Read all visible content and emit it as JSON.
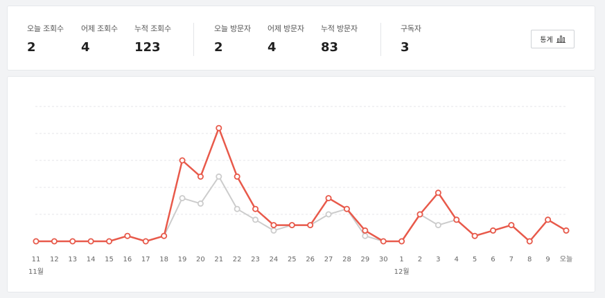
{
  "stats": {
    "groups": [
      [
        {
          "label": "오늘 조회수",
          "value": "2"
        },
        {
          "label": "어제 조회수",
          "value": "4"
        },
        {
          "label": "누적 조회수",
          "value": "123"
        }
      ],
      [
        {
          "label": "오늘 방문자",
          "value": "2"
        },
        {
          "label": "어제 방문자",
          "value": "4"
        },
        {
          "label": "누적 방문자",
          "value": "83"
        }
      ],
      [
        {
          "label": "구독자",
          "value": "3"
        }
      ]
    ],
    "button_label": "통계",
    "button_icon": "bar-chart-icon"
  },
  "chart_data": {
    "type": "line",
    "x": [
      "11",
      "12",
      "13",
      "14",
      "15",
      "16",
      "17",
      "18",
      "19",
      "20",
      "21",
      "22",
      "23",
      "24",
      "25",
      "26",
      "27",
      "28",
      "29",
      "30",
      "1",
      "2",
      "3",
      "4",
      "5",
      "6",
      "7",
      "8",
      "9",
      "오늘"
    ],
    "month_labels": [
      {
        "label": "11월",
        "at_index": 0
      },
      {
        "label": "12월",
        "at_index": 20
      }
    ],
    "ylim": [
      0,
      25
    ],
    "grid": true,
    "series": [
      {
        "color": "#e8594a",
        "values": [
          0,
          0,
          0,
          0,
          0,
          1,
          0,
          1,
          15,
          12,
          21,
          12,
          6,
          3,
          3,
          3,
          8,
          6,
          2,
          0,
          0,
          5,
          9,
          4,
          1,
          2,
          3,
          0,
          4,
          2
        ]
      },
      {
        "color": "#cccccc",
        "values": [
          0,
          0,
          0,
          0,
          0,
          1,
          0,
          1,
          8,
          7,
          12,
          6,
          4,
          2,
          3,
          3,
          5,
          6,
          1,
          0,
          0,
          5,
          3,
          4,
          1,
          2,
          3,
          0,
          4,
          2
        ]
      }
    ]
  }
}
